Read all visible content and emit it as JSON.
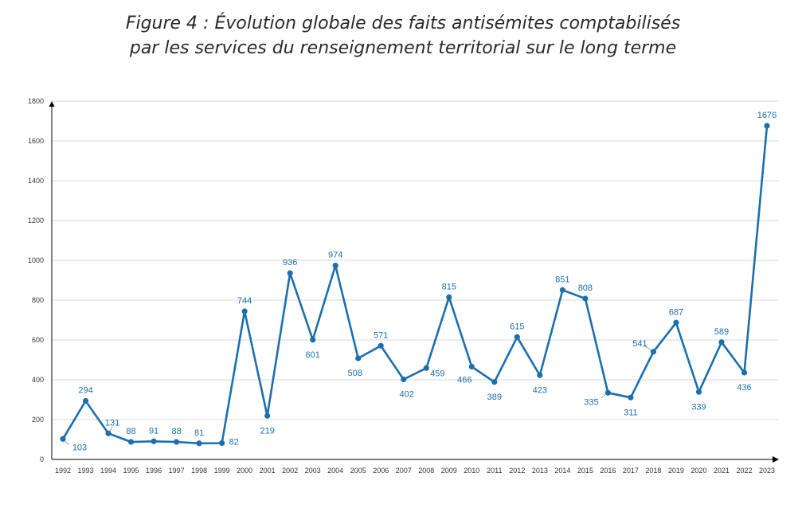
{
  "title": {
    "line1": "Figure 4 : Évolution globale des faits antisémites comptabilisés",
    "line2": "par les services du renseignement territorial sur le long terme"
  },
  "colors": {
    "line": "#1b6fae",
    "label": "#1b6fae",
    "grid": "#d9d9d9",
    "axis": "#000000"
  },
  "chart_data": {
    "type": "line",
    "title": "Figure 4 : Évolution globale des faits antisémites comptabilisés par les services du renseignement territorial sur le long terme",
    "xlabel": "",
    "ylabel": "",
    "ylim": [
      0,
      1800
    ],
    "yticks": [
      0,
      200,
      400,
      600,
      800,
      1000,
      1200,
      1400,
      1600,
      1800
    ],
    "grid": true,
    "legend": "none",
    "x": [
      "1992",
      "1993",
      "1994",
      "1995",
      "1996",
      "1997",
      "1998",
      "1999",
      "2000",
      "2001",
      "2002",
      "2003",
      "2004",
      "2005",
      "2006",
      "2007",
      "2008",
      "2009",
      "2010",
      "2011",
      "2012",
      "2013",
      "2014",
      "2015",
      "2016",
      "2017",
      "2018",
      "2019",
      "2020",
      "2021",
      "2022",
      "2023"
    ],
    "values": [
      103,
      294,
      131,
      88,
      91,
      88,
      81,
      82,
      744,
      219,
      936,
      601,
      974,
      508,
      571,
      402,
      459,
      815,
      466,
      389,
      615,
      423,
      851,
      808,
      335,
      311,
      541,
      687,
      339,
      589,
      436,
      1676
    ],
    "labels": [
      "103",
      "294",
      "131",
      "88",
      "91",
      "88",
      "81",
      "82",
      "744",
      "219",
      "936",
      "601",
      "974",
      "508",
      "571",
      "402",
      "459",
      "815",
      "466",
      "389",
      "615",
      "423",
      "851",
      "808",
      "335",
      "311",
      "541",
      "687",
      "339",
      "589",
      "436",
      "1676"
    ]
  }
}
